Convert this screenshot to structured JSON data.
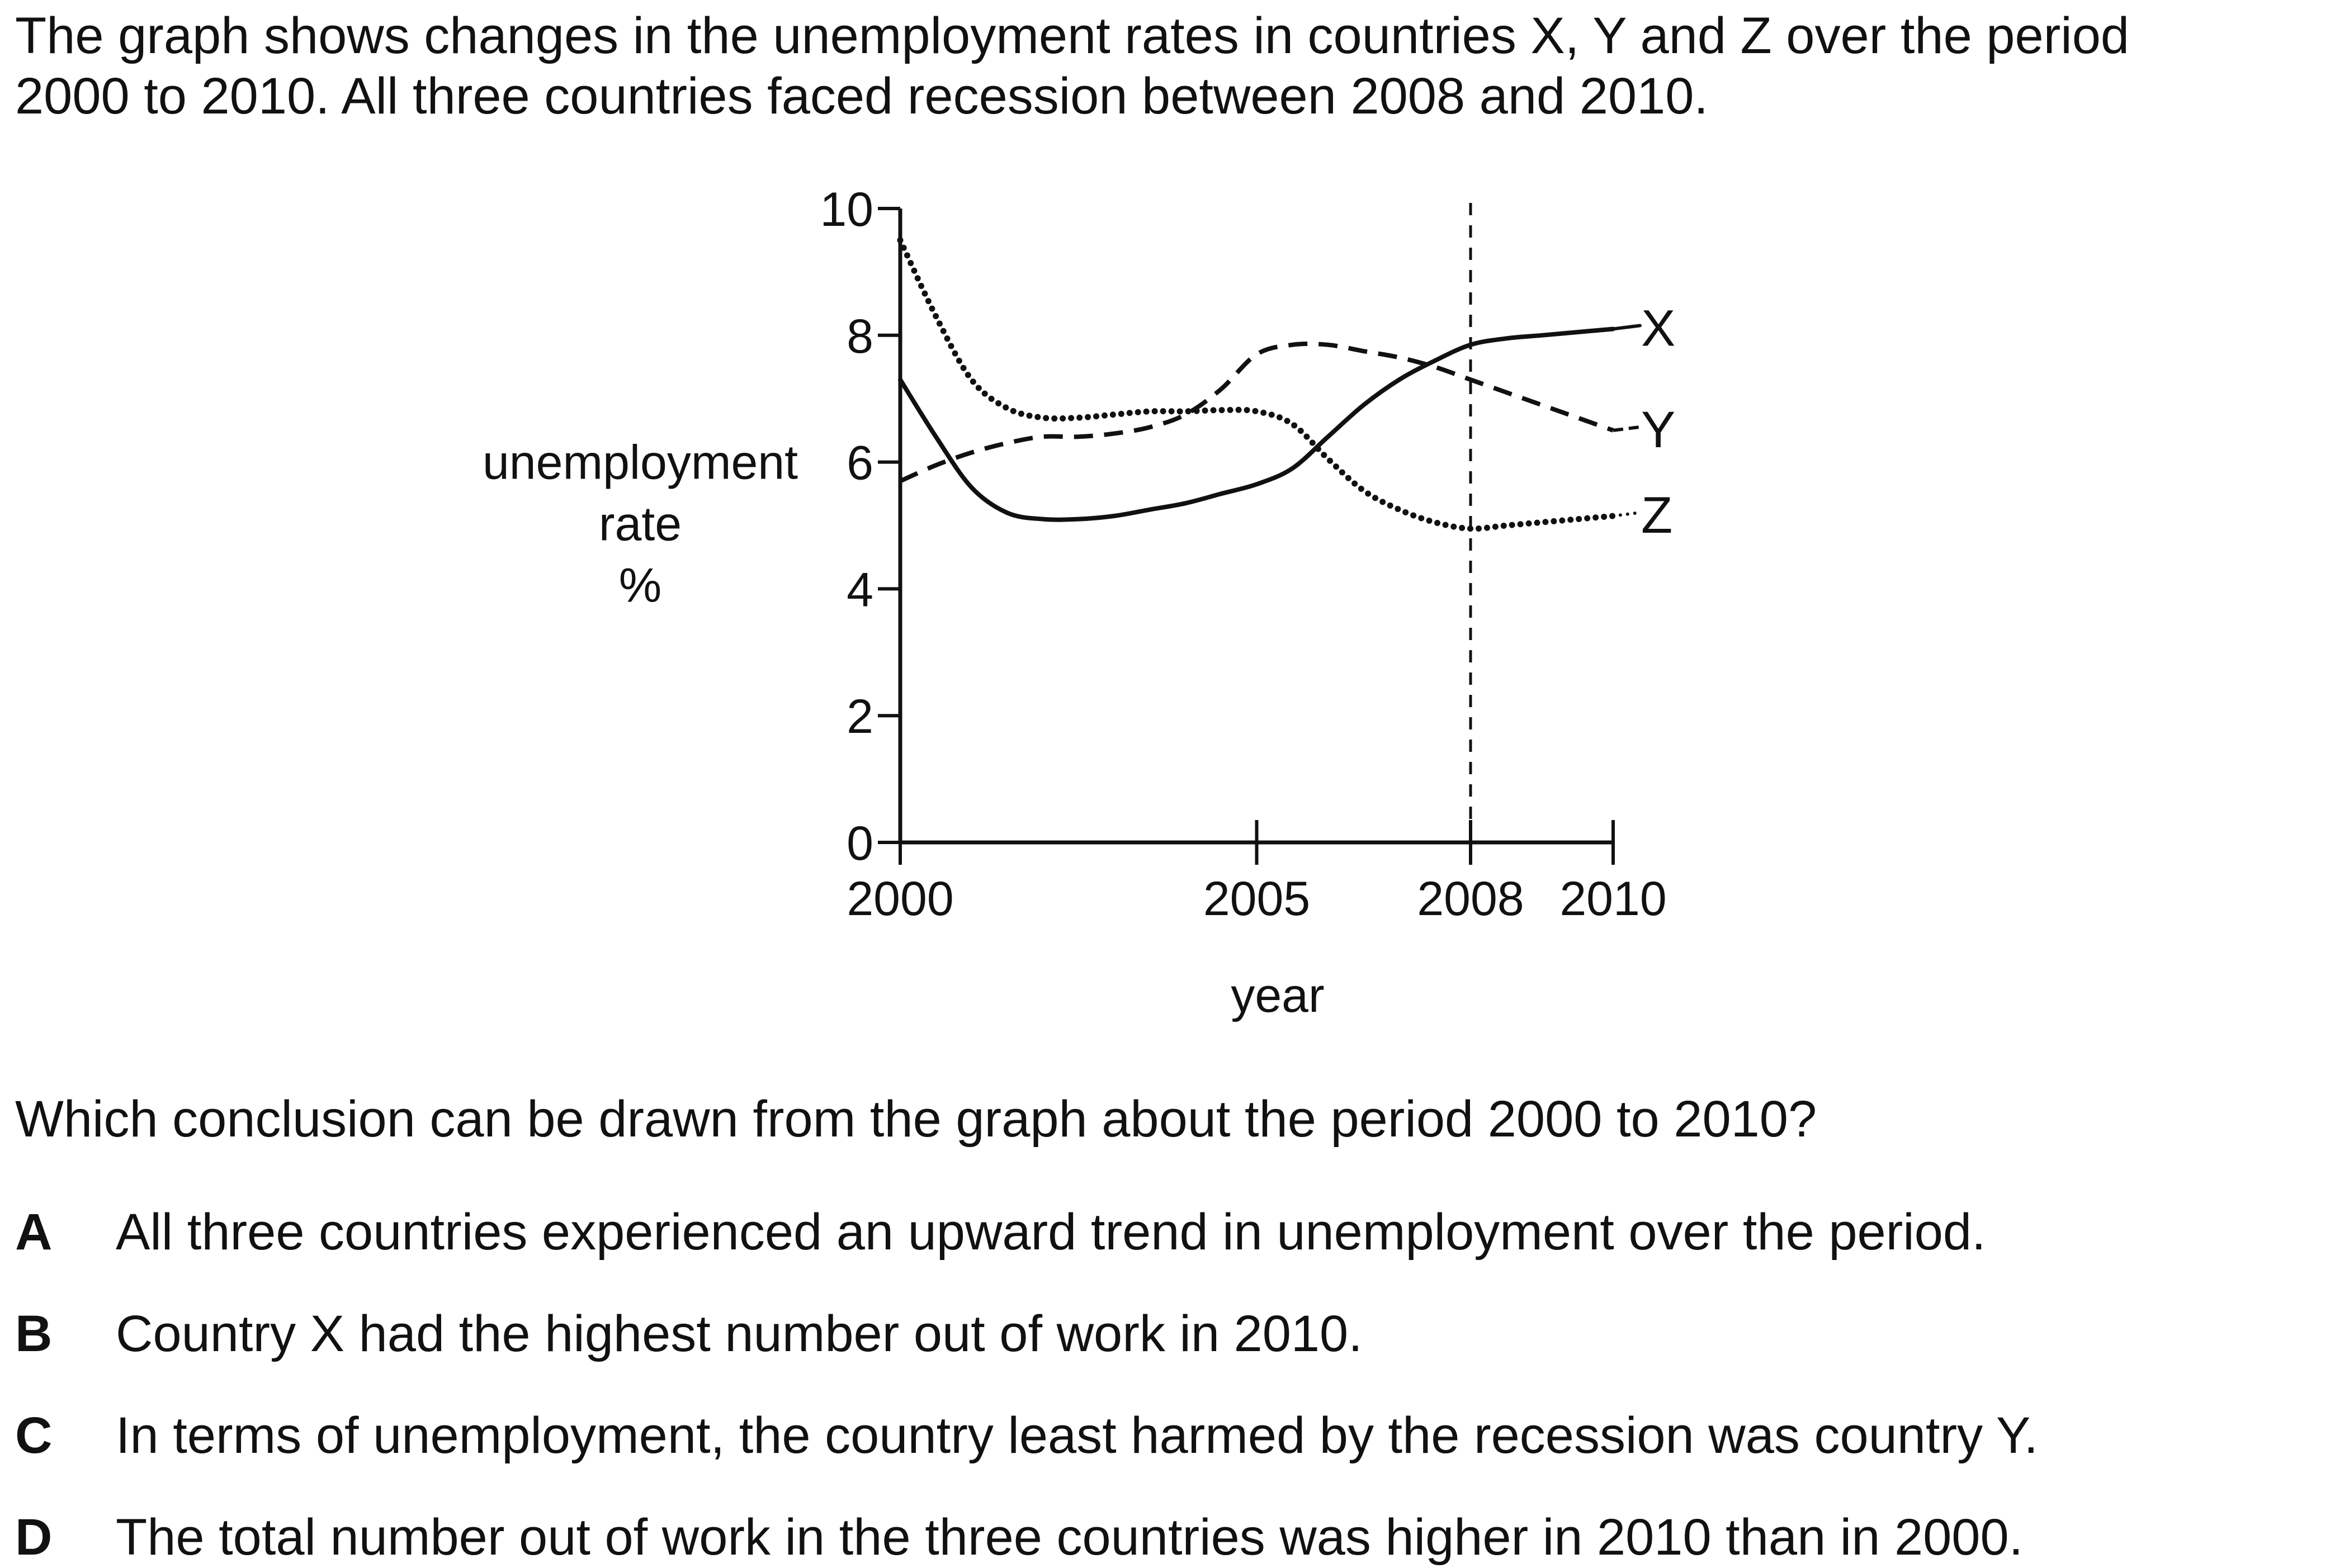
{
  "intro": {
    "line1": "The graph shows changes in the unemployment rates in countries X, Y and Z over the period",
    "line2": "2000 to 2010. All three countries faced recession between 2008 and 2010."
  },
  "question": "Which conclusion can be drawn from the graph about the period 2000 to 2010?",
  "options": [
    {
      "letter": "A",
      "text": "All three countries experienced an upward trend in unemployment over the period."
    },
    {
      "letter": "B",
      "text": "Country X had the highest number out of work in 2010."
    },
    {
      "letter": "C",
      "text": "In terms of unemployment, the country least harmed by the recession was country Y."
    },
    {
      "letter": "D",
      "text": "The total number out of work in the three countries was higher in 2010 than in 2000."
    }
  ],
  "chart_data": {
    "type": "line",
    "ylabel_lines": [
      "unemployment",
      "rate",
      "%"
    ],
    "xlabel": "year",
    "xlim": [
      2000,
      2010
    ],
    "ylim": [
      0,
      10
    ],
    "xticks": [
      2000,
      2005,
      2008,
      2010
    ],
    "yticks": [
      0,
      2,
      4,
      6,
      8,
      10
    ],
    "grid": false,
    "reference_line": {
      "x": 2008,
      "style": "dashed"
    },
    "series": [
      {
        "name": "X",
        "style": "solid",
        "x": [
          2000,
          2000.5,
          2001,
          2001.5,
          2002,
          2002.5,
          2003,
          2003.5,
          2004,
          2004.5,
          2005,
          2005.5,
          2006,
          2006.5,
          2007,
          2007.5,
          2008,
          2008.5,
          2009,
          2009.5,
          2010
        ],
        "values": [
          7.3,
          6.4,
          5.6,
          5.2,
          5.1,
          5.1,
          5.15,
          5.25,
          5.35,
          5.5,
          5.65,
          5.9,
          6.4,
          6.9,
          7.3,
          7.6,
          7.85,
          7.95,
          8.0,
          8.05,
          8.1
        ]
      },
      {
        "name": "Y",
        "style": "dashed",
        "x": [
          2000,
          2000.5,
          2001,
          2001.5,
          2002,
          2002.5,
          2003,
          2003.5,
          2004,
          2004.5,
          2005,
          2005.5,
          2006,
          2006.5,
          2007,
          2007.5,
          2008,
          2008.5,
          2009,
          2009.5,
          2010
        ],
        "values": [
          5.7,
          5.95,
          6.15,
          6.3,
          6.4,
          6.4,
          6.45,
          6.55,
          6.75,
          7.15,
          7.7,
          7.85,
          7.85,
          7.75,
          7.65,
          7.5,
          7.3,
          7.1,
          6.9,
          6.7,
          6.5
        ]
      },
      {
        "name": "Z",
        "style": "dotted",
        "x": [
          2000,
          2000.5,
          2001,
          2001.5,
          2002,
          2002.5,
          2003,
          2003.5,
          2004,
          2004.5,
          2005,
          2005.5,
          2006,
          2006.5,
          2007,
          2007.5,
          2008,
          2008.5,
          2009,
          2009.5,
          2010
        ],
        "values": [
          9.5,
          8.3,
          7.3,
          6.85,
          6.7,
          6.7,
          6.75,
          6.8,
          6.8,
          6.82,
          6.8,
          6.6,
          6.05,
          5.55,
          5.25,
          5.05,
          4.95,
          5.0,
          5.05,
          5.1,
          5.15
        ]
      }
    ]
  }
}
